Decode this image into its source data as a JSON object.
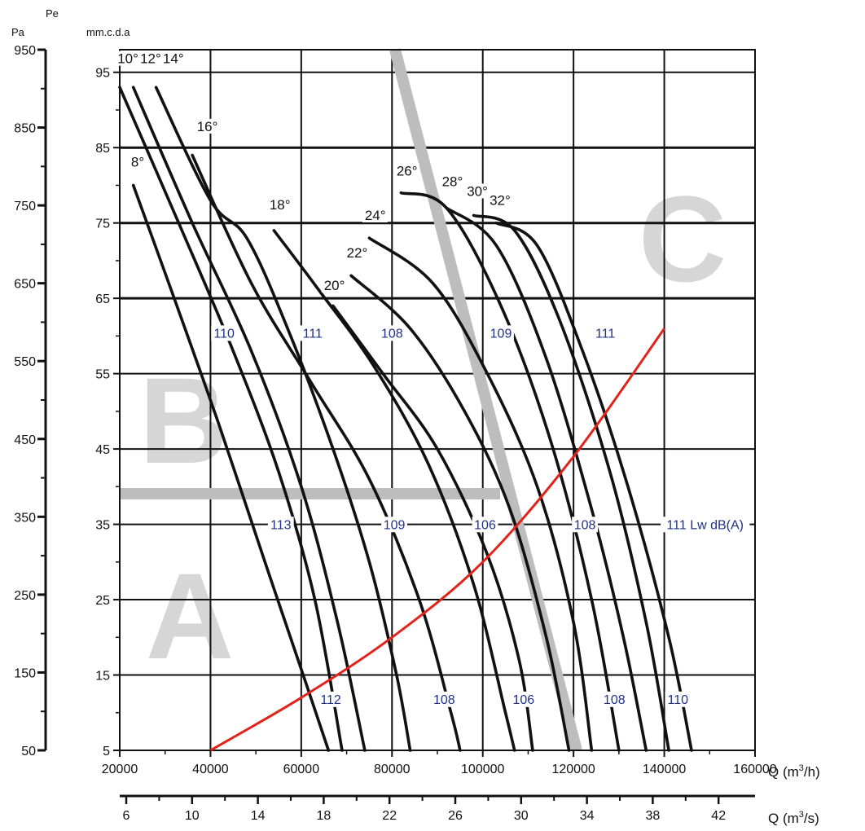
{
  "chart_data": {
    "type": "line",
    "units": {
      "pa": "Pa",
      "pe": "Pe",
      "mmcda": "mm.c.d.a"
    },
    "x_main": {
      "label_prefix": "Q (m",
      "label_sup": "3",
      "label_suffix": "/h)",
      "range": [
        20000,
        160000
      ],
      "ticks": [
        "20000",
        "40000",
        "60000",
        "80000",
        "100000",
        "120000",
        "140000",
        "160000"
      ]
    },
    "x_secondary": {
      "label_prefix": "Q (m",
      "label_sup": "3",
      "label_suffix": "/s)",
      "ticks": [
        {
          "v": 6,
          "t": "6"
        },
        {
          "v": 10,
          "t": "10"
        },
        {
          "v": 14,
          "t": "14"
        },
        {
          "v": 18,
          "t": "18"
        },
        {
          "v": 22,
          "t": "22"
        },
        {
          "v": 26,
          "t": "26"
        },
        {
          "v": 30,
          "t": "30"
        },
        {
          "v": 34,
          "t": "34"
        },
        {
          "v": 38,
          "t": "38"
        },
        {
          "v": 42,
          "t": "42"
        }
      ]
    },
    "y_mm": {
      "range": [
        5,
        98
      ],
      "ticks": [
        "5",
        "15",
        "25",
        "35",
        "45",
        "55",
        "65",
        "75",
        "85",
        "95"
      ]
    },
    "y_pa": {
      "ticks": [
        {
          "v": 50,
          "t": "50"
        },
        {
          "v": 150,
          "t": "150"
        },
        {
          "v": 250,
          "t": "250"
        },
        {
          "v": 350,
          "t": "350"
        },
        {
          "v": 450,
          "t": "450"
        },
        {
          "v": 550,
          "t": "550"
        },
        {
          "v": 650,
          "t": "650"
        },
        {
          "v": 750,
          "t": "750"
        },
        {
          "v": 850,
          "t": "850"
        },
        {
          "v": 950,
          "t": "950"
        }
      ]
    },
    "grid": true,
    "curves": [
      {
        "name": "8°",
        "points": [
          [
            23000,
            80
          ],
          [
            32000,
            65
          ],
          [
            42000,
            48
          ],
          [
            52000,
            30
          ],
          [
            61000,
            14
          ],
          [
            66000,
            5
          ]
        ]
      },
      {
        "name": "10°",
        "points": [
          [
            20000,
            93
          ],
          [
            33000,
            75
          ],
          [
            45000,
            58
          ],
          [
            55000,
            42
          ],
          [
            63000,
            25
          ],
          [
            69000,
            5
          ]
        ]
      },
      {
        "name": "12°",
        "points": [
          [
            23000,
            93
          ],
          [
            36000,
            75
          ],
          [
            49000,
            58
          ],
          [
            60000,
            40
          ],
          [
            68000,
            22
          ],
          [
            74000,
            5
          ]
        ]
      },
      {
        "name": "14°",
        "points": [
          [
            28000,
            93
          ],
          [
            40000,
            78
          ],
          [
            48000,
            73
          ],
          [
            57000,
            61
          ],
          [
            67000,
            45
          ],
          [
            75000,
            30
          ],
          [
            81000,
            15
          ],
          [
            84000,
            5
          ]
        ]
      },
      {
        "name": "16°",
        "points": [
          [
            36000,
            84
          ],
          [
            49000,
            67
          ],
          [
            62000,
            54
          ],
          [
            75000,
            41
          ],
          [
            86000,
            25
          ],
          [
            93000,
            10
          ],
          [
            95000,
            5
          ]
        ]
      },
      {
        "name": "18°",
        "points": [
          [
            54000,
            74
          ],
          [
            64000,
            66
          ],
          [
            76000,
            56
          ],
          [
            88000,
            43
          ],
          [
            98000,
            27
          ],
          [
            105000,
            10
          ],
          [
            107000,
            5
          ]
        ]
      },
      {
        "name": "20°",
        "points": [
          [
            67000,
            64
          ],
          [
            78000,
            55
          ],
          [
            90000,
            45
          ],
          [
            101000,
            31
          ],
          [
            108000,
            17
          ],
          [
            111000,
            5
          ]
        ]
      },
      {
        "name": "22°",
        "points": [
          [
            71000,
            68
          ],
          [
            84000,
            61
          ],
          [
            96000,
            50
          ],
          [
            106000,
            37
          ],
          [
            114000,
            20
          ],
          [
            119000,
            5
          ]
        ]
      },
      {
        "name": "24°",
        "points": [
          [
            75000,
            73
          ],
          [
            89000,
            67
          ],
          [
            101000,
            55
          ],
          [
            112000,
            40
          ],
          [
            120000,
            22
          ],
          [
            124000,
            5
          ]
        ]
      },
      {
        "name": "26°",
        "points": [
          [
            82000,
            79
          ],
          [
            92000,
            77
          ],
          [
            104000,
            64
          ],
          [
            115000,
            46
          ],
          [
            124000,
            25
          ],
          [
            130000,
            5
          ]
        ]
      },
      {
        "name": "28°",
        "points": [
          [
            92000,
            77
          ],
          [
            103000,
            72
          ],
          [
            114000,
            57
          ],
          [
            124000,
            37
          ],
          [
            131000,
            20
          ],
          [
            136000,
            5
          ]
        ]
      },
      {
        "name": "30°",
        "points": [
          [
            98000,
            76
          ],
          [
            107000,
            74
          ],
          [
            117000,
            62
          ],
          [
            128000,
            42
          ],
          [
            136000,
            22
          ],
          [
            141000,
            5
          ]
        ]
      },
      {
        "name": "32°",
        "points": [
          [
            103000,
            75
          ],
          [
            112000,
            72
          ],
          [
            122000,
            58
          ],
          [
            132000,
            40
          ],
          [
            141000,
            20
          ],
          [
            146000,
            5
          ]
        ]
      }
    ],
    "system_curve": {
      "points": [
        [
          40000,
          5
        ],
        [
          60000,
          12
        ],
        [
          80000,
          20
        ],
        [
          100000,
          30
        ],
        [
          120000,
          44
        ],
        [
          140000,
          61
        ]
      ]
    },
    "angle_labels": [
      {
        "t": "8°",
        "x": 22500,
        "y": 82.5
      },
      {
        "t": "10°",
        "x": 19500,
        "y": 96.2
      },
      {
        "t": "12°",
        "x": 24500,
        "y": 96.2
      },
      {
        "t": "14°",
        "x": 29500,
        "y": 96.2
      },
      {
        "t": "16°",
        "x": 37000,
        "y": 87.2
      },
      {
        "t": "18°",
        "x": 53000,
        "y": 76.8
      },
      {
        "t": "20°",
        "x": 65000,
        "y": 66.1
      },
      {
        "t": "22°",
        "x": 70000,
        "y": 70.4
      },
      {
        "t": "24°",
        "x": 74000,
        "y": 75.4
      },
      {
        "t": "26°",
        "x": 81000,
        "y": 81.3
      },
      {
        "t": "28°",
        "x": 91000,
        "y": 79.9
      },
      {
        "t": "30°",
        "x": 96500,
        "y": 78.6
      },
      {
        "t": "32°",
        "x": 101500,
        "y": 77.4
      }
    ],
    "lw_labels": [
      {
        "t": "110",
        "x": 43000,
        "y": 60
      },
      {
        "t": "111",
        "x": 62500,
        "y": 60
      },
      {
        "t": "108",
        "x": 80000,
        "y": 60
      },
      {
        "t": "109",
        "x": 104000,
        "y": 60
      },
      {
        "t": "111",
        "x": 127000,
        "y": 60
      },
      {
        "t": "113",
        "x": 55500,
        "y": 34.6
      },
      {
        "t": "109",
        "x": 80500,
        "y": 34.6
      },
      {
        "t": "106",
        "x": 100500,
        "y": 34.6
      },
      {
        "t": "108",
        "x": 122500,
        "y": 34.6
      },
      {
        "t": "111 Lw dB(A)",
        "x": 149000,
        "y": 34.6
      },
      {
        "t": "112",
        "x": 66500,
        "y": 11.4
      },
      {
        "t": "108",
        "x": 91500,
        "y": 11.4
      },
      {
        "t": "106",
        "x": 109000,
        "y": 11.4
      },
      {
        "t": "108",
        "x": 129000,
        "y": 11.4
      },
      {
        "t": "110",
        "x": 143000,
        "y": 11.4
      }
    ],
    "regions": [
      "A",
      "B",
      "C"
    ],
    "colors": {
      "curve": "#111111",
      "system_curve": "#e2231a",
      "region_line": "#bdbdbd",
      "region_letter": "#d6d6d6",
      "lw_text": "#22318a"
    }
  }
}
